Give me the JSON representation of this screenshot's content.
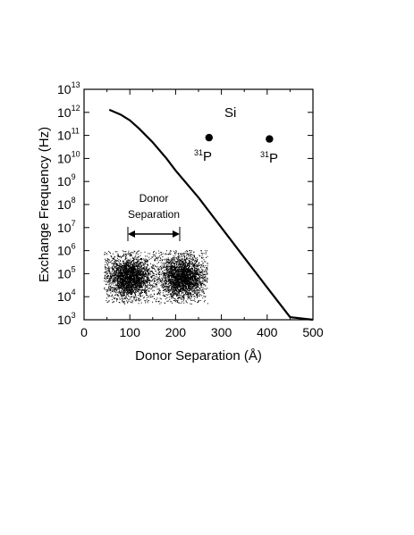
{
  "chart_data": {
    "type": "line",
    "xlabel": "Donor Separation (Å)",
    "ylabel": "Exchange Frequency (Hz)",
    "xlim": [
      0,
      500
    ],
    "ylim_log10": [
      3,
      13
    ],
    "y_scale": "log",
    "grid": false,
    "x_ticks": [
      0,
      100,
      200,
      300,
      400,
      500
    ],
    "y_tick_exponents": [
      3,
      4,
      5,
      6,
      7,
      8,
      9,
      10,
      11,
      12,
      13
    ],
    "y_tick_base": "10",
    "series": [
      {
        "x": [
          55,
          80,
          100,
          120,
          150,
          180,
          200,
          250,
          300,
          350,
          400,
          450,
          500
        ],
        "y": [
          1300000000000.0,
          800000000000.0,
          450000000000.0,
          200000000000.0,
          50000000000.0,
          10000000000.0,
          3000000000.0,
          200000000.0,
          10000000.0,
          500000.0,
          25000.0,
          1300.0,
          1000.0
        ]
      }
    ],
    "annotations": {
      "material": "Si",
      "isotope_mass": "31",
      "element": "P",
      "inset_label_line1": "Donor",
      "inset_label_line2": "Separation"
    },
    "markers": [
      {
        "x": 273,
        "y": 80000000000.0
      },
      {
        "x": 405,
        "y": 70000000000.0
      }
    ]
  }
}
